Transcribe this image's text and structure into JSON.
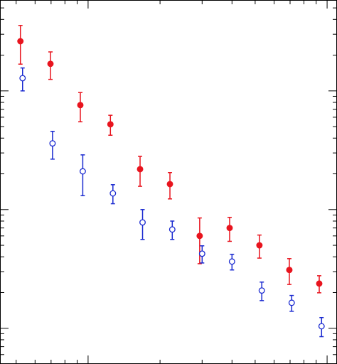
{
  "chart_data": {
    "type": "errorbar",
    "log_x": true,
    "log_y": true,
    "xlim": [
      4.28,
      110
    ],
    "ylim": [
      0.5,
      583
    ],
    "xticks": [
      10,
      100
    ],
    "yticks": [
      1,
      10,
      100
    ],
    "xminorticks": [
      5,
      6,
      7,
      8,
      9,
      20,
      30,
      40,
      50,
      60,
      70,
      80,
      90
    ],
    "yminorticks": [
      0.6,
      0.7,
      0.8,
      0.9,
      2,
      3,
      4,
      5,
      6,
      7,
      8,
      9,
      20,
      30,
      40,
      50,
      60,
      70,
      80,
      90,
      200,
      300,
      400,
      500
    ],
    "series": [
      {
        "color": "#e8141e",
        "marker": "filled",
        "x": [
          5.21,
          6.96,
          9.28,
          12.4,
          16.5,
          22.0,
          29.3,
          39.1,
          52.1,
          69.5,
          92.7
        ],
        "values": [
          262,
          169,
          75.9,
          52.3,
          21.9,
          16.4,
          6.0,
          7.0,
          5.0,
          3.1,
          2.38
        ],
        "yerr": [
          94,
          44,
          21,
          10,
          6.2,
          4.1,
          2.5,
          1.6,
          1.1,
          0.76,
          0.39
        ]
      },
      {
        "color": "#1a2ad0",
        "marker": "open",
        "x": [
          5.32,
          7.1,
          9.5,
          12.7,
          16.9,
          22.5,
          30.0,
          40.0,
          53.3,
          71.1,
          94.8
        ],
        "values": [
          128,
          36.1,
          21.0,
          13.7,
          7.8,
          6.8,
          4.25,
          3.65,
          2.08,
          1.64,
          1.04
        ],
        "yerr": [
          28,
          9.5,
          7.9,
          2.5,
          2.2,
          1.2,
          0.7,
          0.55,
          0.37,
          0.25,
          0.19
        ]
      }
    ]
  }
}
